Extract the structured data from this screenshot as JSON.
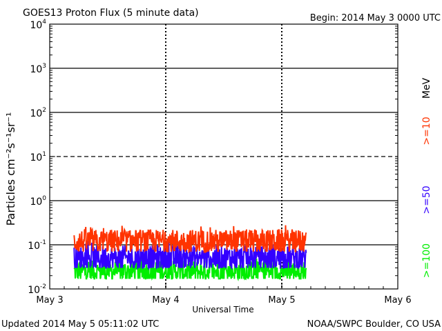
{
  "header": {
    "title": "GOES13 Proton Flux (5 minute data)",
    "begin": "Begin: 2014 May 3 0000 UTC"
  },
  "footer": {
    "updated": "Updated 2014 May  5 05:11:02 UTC",
    "credit": "NOAA/SWPC Boulder, CO USA"
  },
  "axes": {
    "ylabel": "Particles cm⁻²s⁻¹sr⁻¹",
    "xlabel": "Universal Time",
    "ytick_base": "10",
    "yticks": [
      "-2",
      "-1",
      "0",
      "1",
      "2",
      "3",
      "4"
    ]
  },
  "legend": {
    "unit": "MeV",
    "items": [
      {
        "label": ">=10",
        "color": "#ff3300"
      },
      {
        "label": ">=50",
        "color": "#3300ff"
      },
      {
        "label": ">=100",
        "color": "#00ee00"
      }
    ]
  },
  "chart_data": {
    "type": "line",
    "title": "GOES13 Proton Flux (5 minute data)",
    "xlabel": "Universal Time",
    "ylabel": "Particles cm-2 s-1 sr-1",
    "yscale": "log",
    "ylim": [
      0.01,
      10000
    ],
    "x_categories": [
      "May 3",
      "May 4",
      "May 5",
      "May 6"
    ],
    "x_range_days": [
      0,
      3
    ],
    "data_range_days": [
      0.21,
      2.21
    ],
    "threshold_lines": [
      {
        "value": 10,
        "style": "dashed"
      }
    ],
    "series": [
      {
        "name": ">=10 MeV",
        "color": "#ff3300",
        "typical": 0.12,
        "min": 0.07,
        "max": 0.28
      },
      {
        "name": ">=50 MeV",
        "color": "#3300ff",
        "typical": 0.05,
        "min": 0.03,
        "max": 0.13
      },
      {
        "name": ">=100 MeV",
        "color": "#00ee00",
        "typical": 0.025,
        "min": 0.017,
        "max": 0.06
      }
    ]
  }
}
